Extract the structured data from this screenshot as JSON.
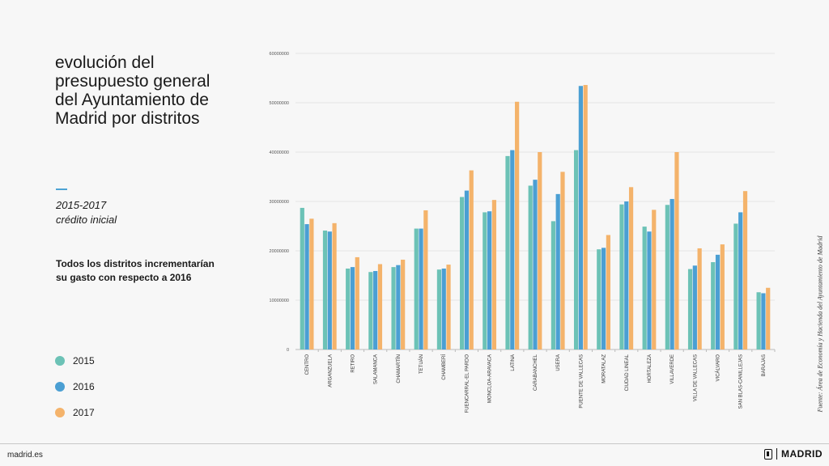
{
  "title_lines": [
    "evolución del",
    "presupuesto general",
    "del Ayuntamiento de",
    "Madrid por distritos"
  ],
  "period": {
    "years": "2015-2017",
    "type": "crédito inicial"
  },
  "highlight_lines": [
    "Todos los distritos incrementarían",
    "su gasto con respecto a 2016"
  ],
  "legend": [
    {
      "label": "2015",
      "color": "#6cc2b6"
    },
    {
      "label": "2016",
      "color": "#4b9fd3"
    },
    {
      "label": "2017",
      "color": "#f4b36b"
    }
  ],
  "source": "Fuente: Área de Economía y Hacienda del Ayuntamiento de Madrid",
  "footer": {
    "url": "madrid.es",
    "brand": "MADRID"
  },
  "chart_data": {
    "type": "bar",
    "title": "evolución del presupuesto general del Ayuntamiento de Madrid por distritos",
    "xlabel": "",
    "ylabel": "",
    "ylim": [
      0,
      60000000
    ],
    "yticks": [
      "0",
      "10000000",
      "20000000",
      "30000000",
      "40000000",
      "50000000",
      "60000000"
    ],
    "grid": true,
    "categories": [
      "CENTRO",
      "ARGANZUELA",
      "RETIRO",
      "SALAMANCA",
      "CHAMARTÍN",
      "TETUÁN",
      "CHAMBERÍ",
      "FUENCARRAL-EL PARDO",
      "MONCLOA-ARAVACA",
      "LATINA",
      "CARABANCHEL",
      "USERA",
      "PUENTE DE VALLECAS",
      "MORATALAZ",
      "CIUDAD LINEAL",
      "HORTALEZA",
      "VILLAVERDE",
      "VILLA DE VALLECAS",
      "VICÁLVARO",
      "SAN BLAS-CANILLEJAS",
      "BARAJAS"
    ],
    "series": [
      {
        "name": "2015",
        "color": "#6cc2b6",
        "values": [
          28700000,
          24100000,
          16400000,
          15700000,
          16700000,
          24500000,
          16200000,
          30900000,
          27800000,
          39200000,
          33200000,
          26000000,
          40400000,
          20300000,
          29400000,
          24900000,
          29300000,
          16300000,
          17700000,
          25500000,
          11600000
        ]
      },
      {
        "name": "2016",
        "color": "#4b9fd3",
        "values": [
          25400000,
          23900000,
          16700000,
          15900000,
          17100000,
          24500000,
          16400000,
          32200000,
          28000000,
          40400000,
          34400000,
          31500000,
          53400000,
          20600000,
          30000000,
          23900000,
          30500000,
          17000000,
          19200000,
          27800000,
          11400000
        ]
      },
      {
        "name": "2017",
        "color": "#f4b36b",
        "values": [
          26500000,
          25600000,
          18700000,
          17300000,
          18200000,
          28200000,
          17200000,
          36300000,
          30300000,
          50200000,
          40000000,
          36000000,
          53600000,
          23200000,
          32900000,
          28300000,
          40000000,
          20500000,
          21300000,
          32100000,
          12500000
        ]
      }
    ]
  }
}
